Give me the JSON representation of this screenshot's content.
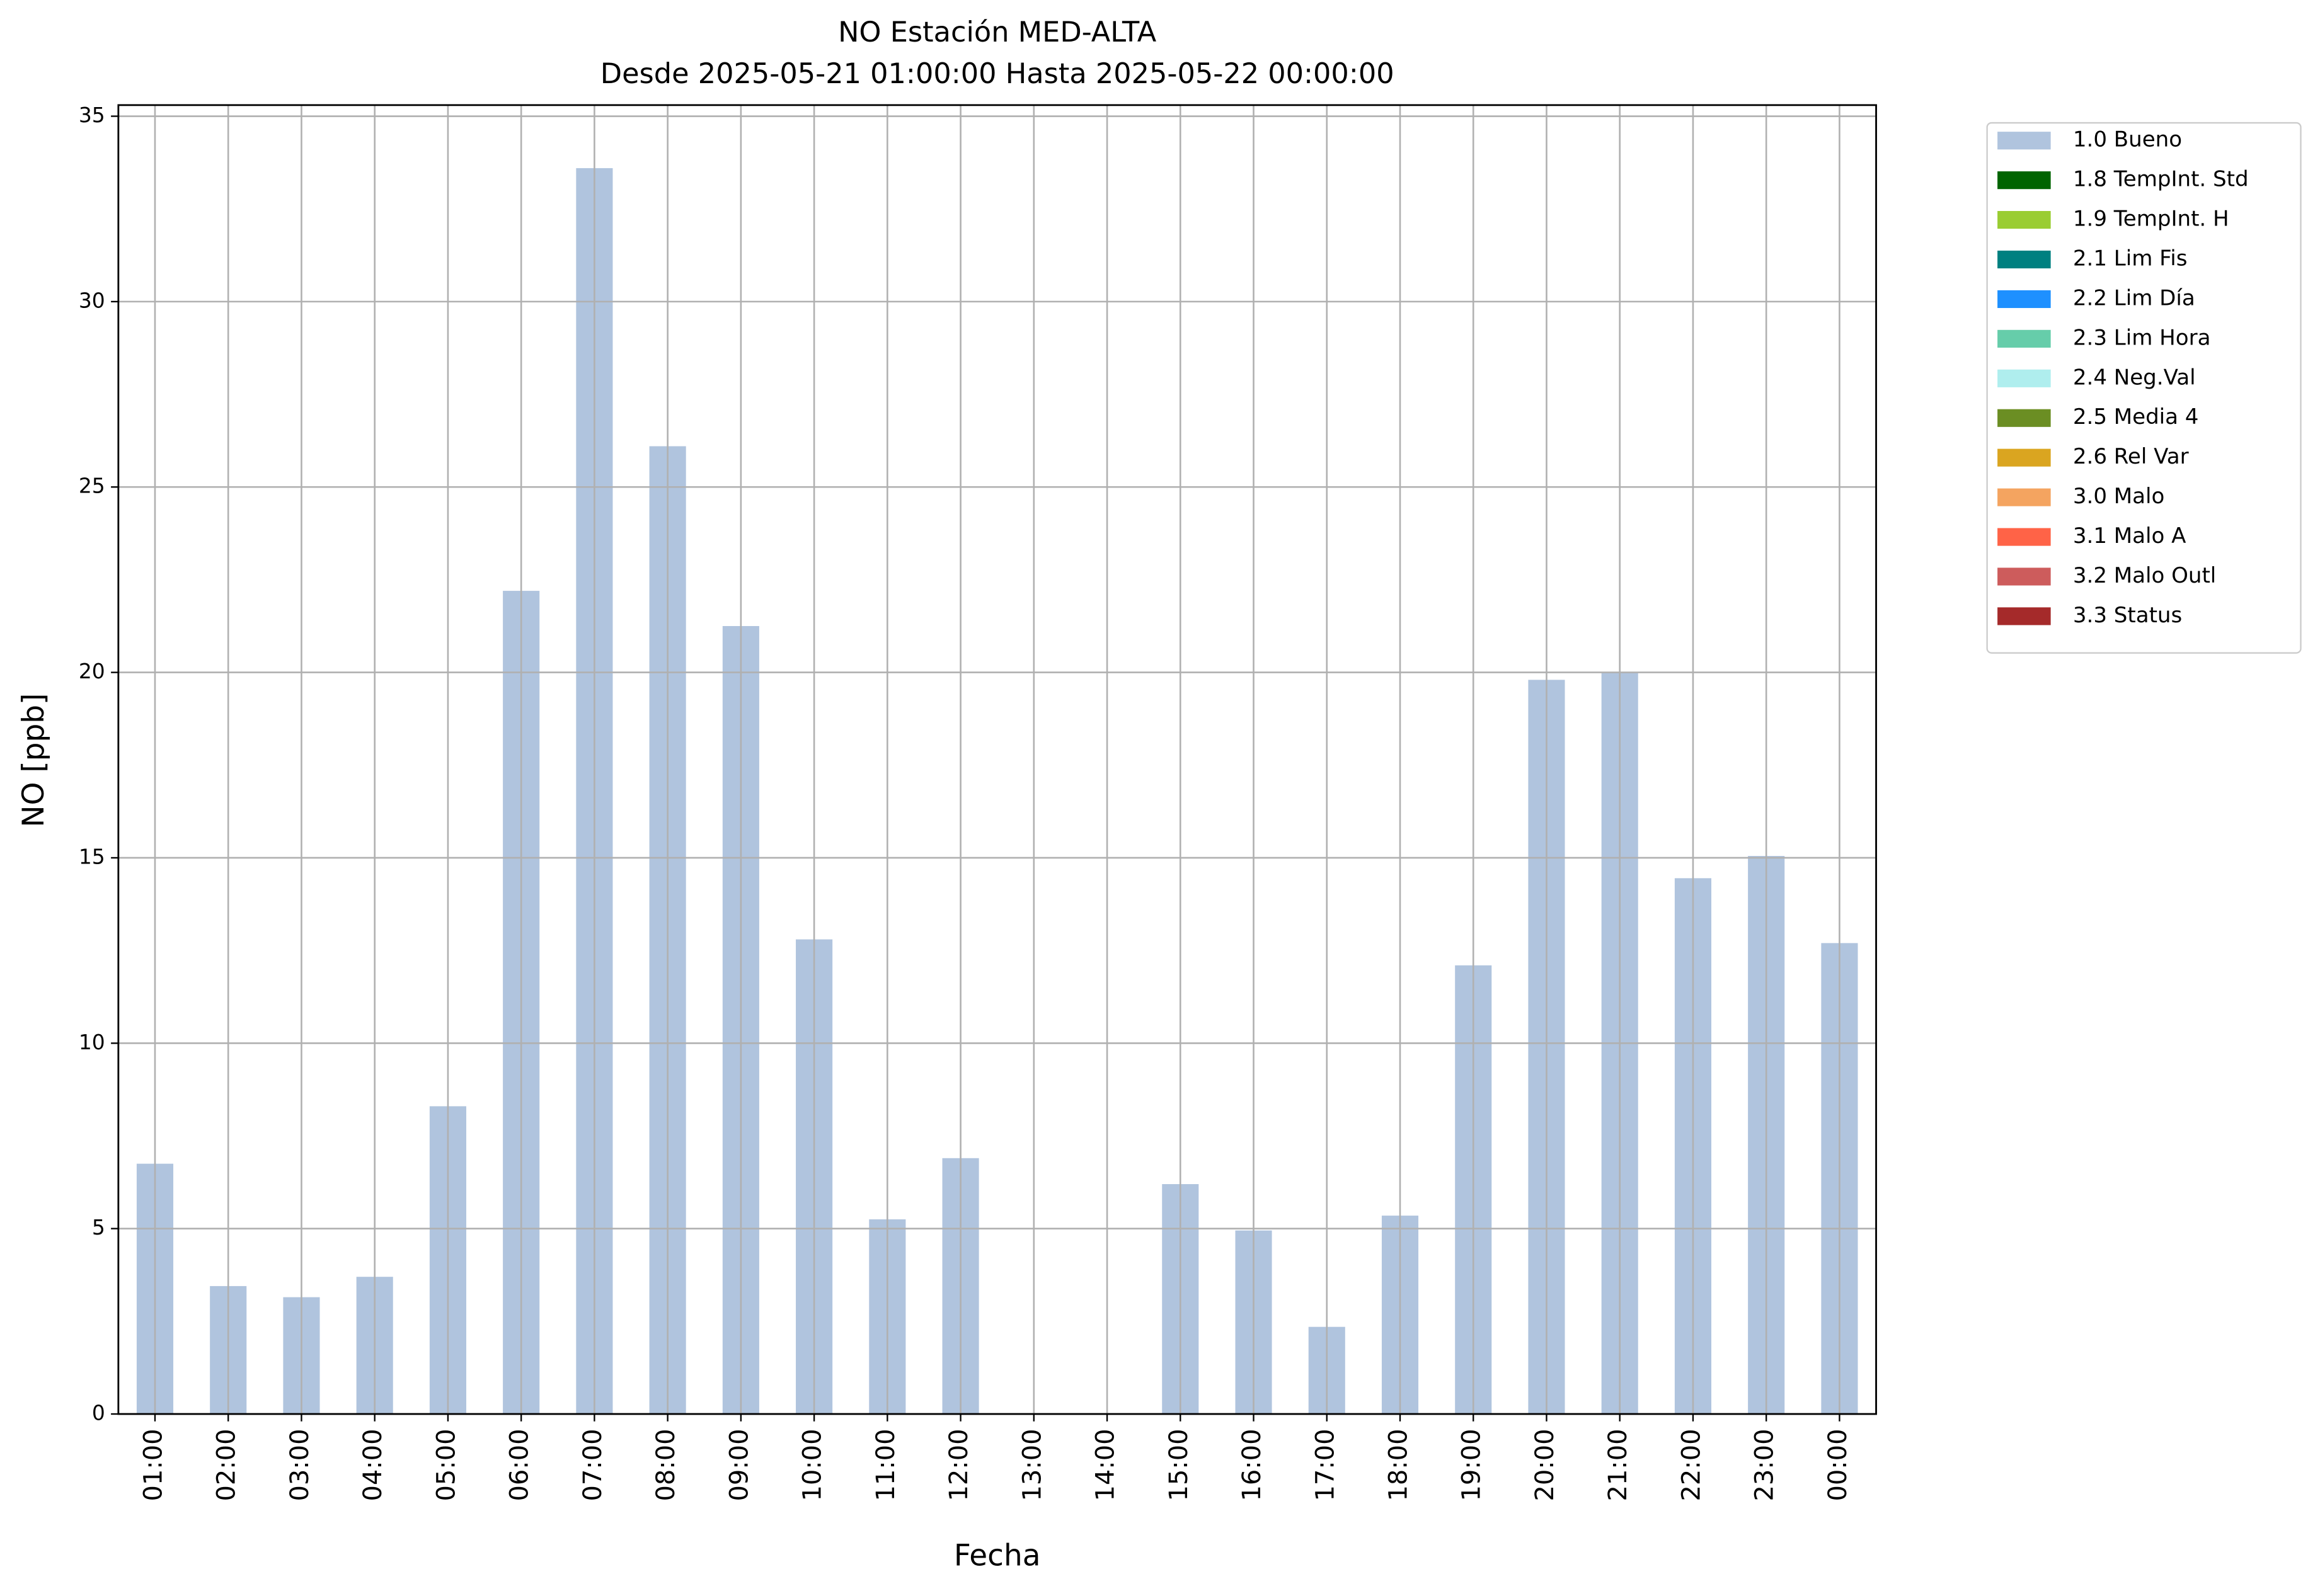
{
  "chart_data": {
    "type": "bar",
    "title": "NO Estación MED-ALTA",
    "subtitle": "Desde 2025-05-21 01:00:00 Hasta 2025-05-22 00:00:00",
    "xlabel": "Fecha",
    "ylabel": "NO [ppb]",
    "categories": [
      "01:00",
      "02:00",
      "03:00",
      "04:00",
      "05:00",
      "06:00",
      "07:00",
      "08:00",
      "09:00",
      "10:00",
      "11:00",
      "12:00",
      "13:00",
      "14:00",
      "15:00",
      "16:00",
      "17:00",
      "18:00",
      "19:00",
      "20:00",
      "21:00",
      "22:00",
      "23:00",
      "00:00"
    ],
    "series": [
      {
        "name": "1.0 Bueno",
        "color": "#b0c4de",
        "values": [
          6.75,
          3.45,
          3.15,
          3.7,
          8.3,
          22.2,
          33.6,
          26.1,
          21.25,
          12.8,
          5.25,
          6.9,
          null,
          null,
          6.2,
          4.95,
          2.35,
          5.35,
          12.1,
          19.8,
          20.0,
          14.45,
          15.05,
          12.7
        ]
      },
      {
        "name": "1.8 TempInt. Std",
        "color": "#006400",
        "values": [
          null,
          null,
          null,
          null,
          null,
          null,
          null,
          null,
          null,
          null,
          null,
          null,
          null,
          null,
          null,
          null,
          null,
          null,
          null,
          null,
          null,
          null,
          null,
          null
        ]
      },
      {
        "name": "1.9 TempInt. H",
        "color": "#9acd32",
        "values": [
          null,
          null,
          null,
          null,
          null,
          null,
          null,
          null,
          null,
          null,
          null,
          null,
          null,
          null,
          null,
          null,
          null,
          null,
          null,
          null,
          null,
          null,
          null,
          null
        ]
      },
      {
        "name": "2.1 Lim Fis",
        "color": "#008080",
        "values": [
          null,
          null,
          null,
          null,
          null,
          null,
          null,
          null,
          null,
          null,
          null,
          null,
          null,
          null,
          null,
          null,
          null,
          null,
          null,
          null,
          null,
          null,
          null,
          null
        ]
      },
      {
        "name": "2.2 Lim Día",
        "color": "#1e90ff",
        "values": [
          null,
          null,
          null,
          null,
          null,
          null,
          null,
          null,
          null,
          null,
          null,
          null,
          null,
          null,
          null,
          null,
          null,
          null,
          null,
          null,
          null,
          null,
          null,
          null
        ]
      },
      {
        "name": "2.3 Lim Hora",
        "color": "#66cdaa",
        "values": [
          null,
          null,
          null,
          null,
          null,
          null,
          null,
          null,
          null,
          null,
          null,
          null,
          null,
          null,
          null,
          null,
          null,
          null,
          null,
          null,
          null,
          null,
          null,
          null
        ]
      },
      {
        "name": "2.4 Neg.Val",
        "color": "#afeeee",
        "values": [
          null,
          null,
          null,
          null,
          null,
          null,
          null,
          null,
          null,
          null,
          null,
          null,
          null,
          null,
          null,
          null,
          null,
          null,
          null,
          null,
          null,
          null,
          null,
          null
        ]
      },
      {
        "name": "2.5 Media 4",
        "color": "#6b8e23",
        "values": [
          null,
          null,
          null,
          null,
          null,
          null,
          null,
          null,
          null,
          null,
          null,
          null,
          null,
          null,
          null,
          null,
          null,
          null,
          null,
          null,
          null,
          null,
          null,
          null
        ]
      },
      {
        "name": "2.6 Rel Var",
        "color": "#daa520",
        "values": [
          null,
          null,
          null,
          null,
          null,
          null,
          null,
          null,
          null,
          null,
          null,
          null,
          null,
          null,
          null,
          null,
          null,
          null,
          null,
          null,
          null,
          null,
          null,
          null
        ]
      },
      {
        "name": "3.0 Malo",
        "color": "#f4a460",
        "values": [
          null,
          null,
          null,
          null,
          null,
          null,
          null,
          null,
          null,
          null,
          null,
          null,
          null,
          null,
          null,
          null,
          null,
          null,
          null,
          null,
          null,
          null,
          null,
          null
        ]
      },
      {
        "name": "3.1 Malo A",
        "color": "#ff6347",
        "values": [
          null,
          null,
          null,
          null,
          null,
          null,
          null,
          null,
          null,
          null,
          null,
          null,
          null,
          null,
          null,
          null,
          null,
          null,
          null,
          null,
          null,
          null,
          null,
          null
        ]
      },
      {
        "name": "3.2 Malo Outl",
        "color": "#cd5c5c",
        "values": [
          null,
          null,
          null,
          null,
          null,
          null,
          null,
          null,
          null,
          null,
          null,
          null,
          null,
          null,
          null,
          null,
          null,
          null,
          null,
          null,
          null,
          null,
          null,
          null
        ]
      },
      {
        "name": "3.3 Status",
        "color": "#a52a2a",
        "values": [
          null,
          null,
          null,
          null,
          null,
          null,
          null,
          null,
          null,
          null,
          null,
          null,
          null,
          null,
          null,
          null,
          null,
          null,
          null,
          null,
          null,
          null,
          null,
          null
        ]
      }
    ],
    "ylim": [
      0,
      35.3
    ],
    "yticks": [
      0,
      5,
      10,
      15,
      20,
      25,
      30,
      35
    ],
    "grid": true,
    "stacked": true,
    "legend": "outside-upper-right"
  }
}
